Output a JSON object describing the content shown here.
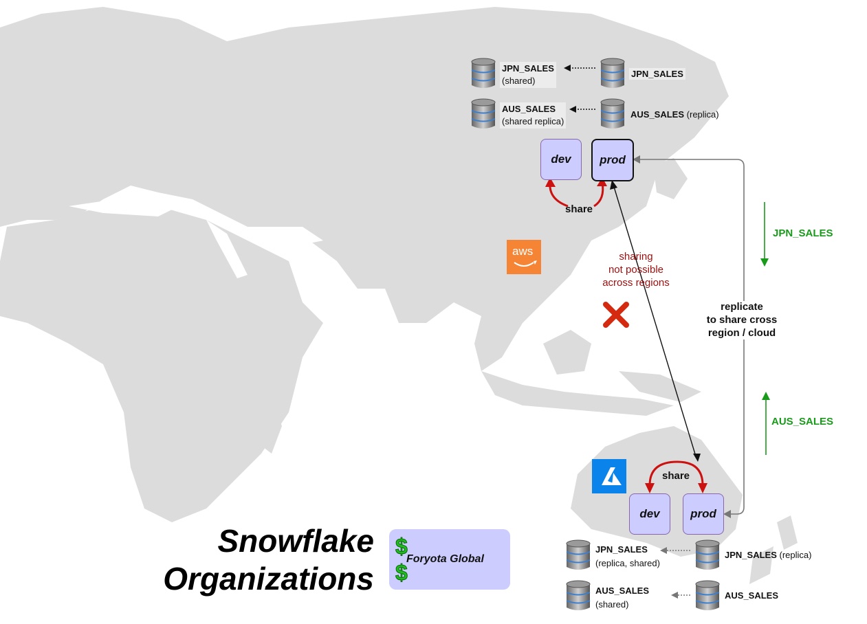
{
  "title": {
    "line1": "Snowflake",
    "line2": "Organizations"
  },
  "organization": {
    "name": "Foryota Global",
    "icon": "dollar-icon"
  },
  "regions": {
    "asia": {
      "dev_label": "dev",
      "prod_label": "prod",
      "share_label": "share",
      "cloud_icon": "aws-logo",
      "cloud_logo_text": "aws"
    },
    "australia": {
      "dev_label": "dev",
      "prod_label": "prod",
      "share_label": "share",
      "cloud_icon": "azure-logo"
    }
  },
  "databases": {
    "asia": {
      "jpn_shared": {
        "name": "JPN_SALES",
        "note": "(shared)"
      },
      "jpn_source": {
        "name": "JPN_SALES",
        "note": ""
      },
      "aus_shared": {
        "name": "AUS_SALES",
        "note": "(shared replica)"
      },
      "aus_source": {
        "name": "AUS_SALES",
        "note": "(replica)"
      }
    },
    "australia": {
      "jpn_shared": {
        "name": "JPN_SALES",
        "note": "(replica, shared)"
      },
      "jpn_source": {
        "name": "JPN_SALES",
        "note": "(replica)"
      },
      "aus_shared": {
        "name": "AUS_SALES",
        "note": "(shared)"
      },
      "aus_source": {
        "name": "AUS_SALES",
        "note": ""
      }
    }
  },
  "annotations": {
    "sharing_not_possible": [
      "sharing",
      "not possible",
      "across regions"
    ],
    "replicate": [
      "replicate",
      "to share cross",
      "region / cloud"
    ],
    "jpn_flow": "JPN_SALES",
    "aus_flow": "AUS_SALES"
  },
  "colors": {
    "map_land": "#dcdcdc",
    "box_fill": "#ccccff",
    "share_arrow": "#cc1111",
    "flow_green": "#1a9a1a",
    "warning_text": "#a01010",
    "x_mark": "#d42a10"
  }
}
